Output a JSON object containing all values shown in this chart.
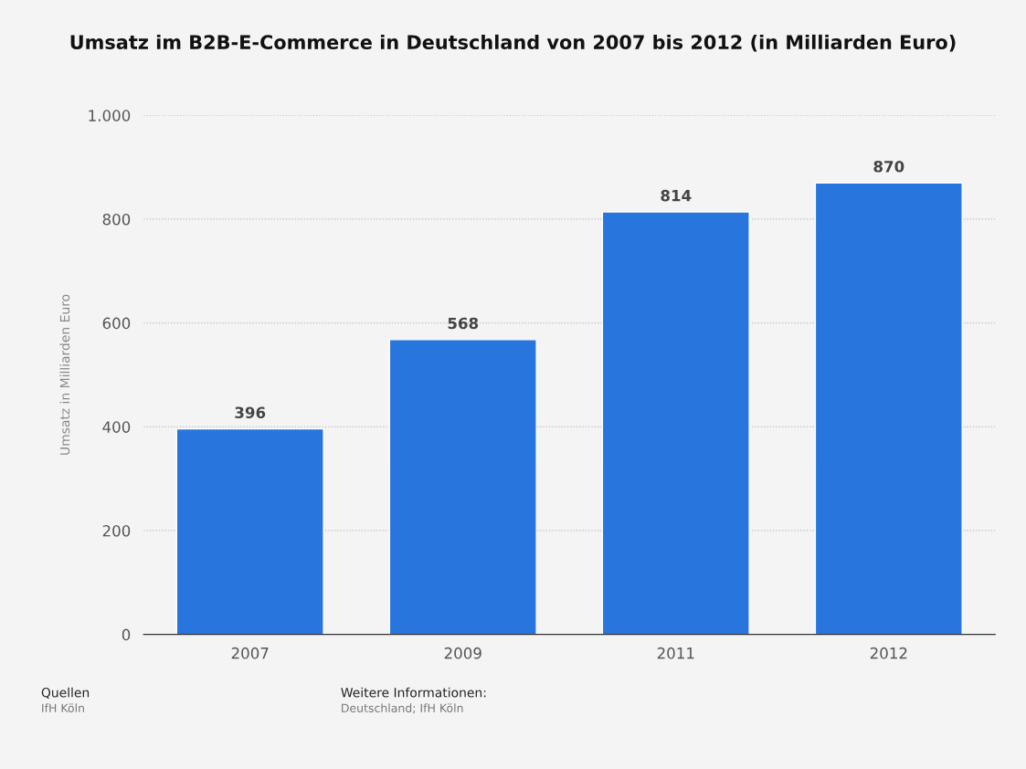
{
  "chart_data": {
    "type": "bar",
    "title": "Umsatz im B2B-E-Commerce in Deutschland von 2007 bis 2012 (in Milliarden Euro)",
    "ylabel": "Umsatz in Milliarden Euro",
    "categories": [
      "2007",
      "2009",
      "2011",
      "2012"
    ],
    "values": [
      396,
      568,
      814,
      870
    ],
    "color": "#2875dd",
    "ylim": [
      0,
      1000
    ],
    "yticks": [
      0,
      200,
      400,
      600,
      800,
      {
        "value": 1000,
        "label": "1.000"
      }
    ],
    "grid": "y",
    "data_labels": true,
    "annotations": [
      "Quellen",
      "IfH Köln",
      "Weitere Informationen:",
      "Deutschland; IfH Köln"
    ]
  }
}
